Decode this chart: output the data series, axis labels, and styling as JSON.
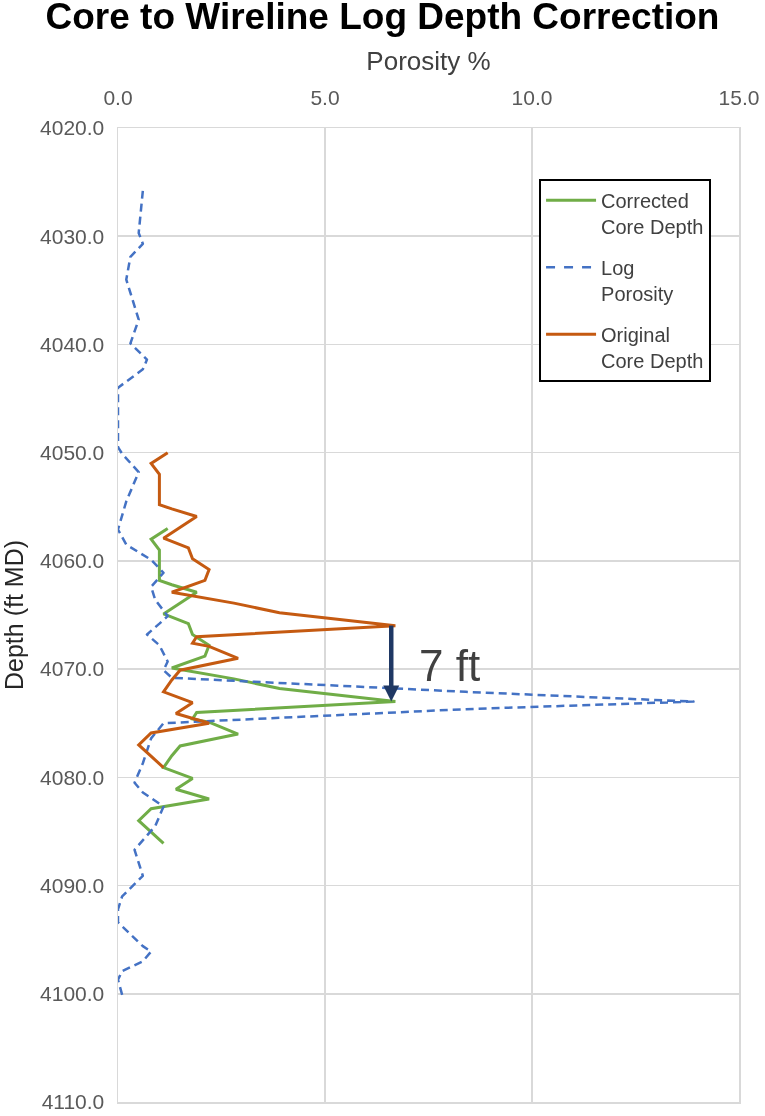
{
  "chart_data": {
    "type": "line",
    "title": "Core to Wireline Log Depth Correction",
    "xlabel": "Porosity %",
    "ylabel": "Depth (ft MD)",
    "xlim": [
      0,
      15
    ],
    "xticks": [
      {
        "value": 0,
        "label": "0.0"
      },
      {
        "value": 5,
        "label": "5.0"
      },
      {
        "value": 10,
        "label": "10.0"
      },
      {
        "value": 15,
        "label": "15.0"
      }
    ],
    "ylim": [
      4110,
      4020
    ],
    "yticks": [
      {
        "value": 4020,
        "label": "4020.0"
      },
      {
        "value": 4030,
        "label": "4030.0"
      },
      {
        "value": 4040,
        "label": "4040.0"
      },
      {
        "value": 4050,
        "label": "4050.0"
      },
      {
        "value": 4060,
        "label": "4060.0"
      },
      {
        "value": 4070,
        "label": "4070.0"
      },
      {
        "value": 4080,
        "label": "4080.0"
      },
      {
        "value": 4090,
        "label": "4090.0"
      },
      {
        "value": 4100,
        "label": "4100.0"
      },
      {
        "value": 4110,
        "label": "4110.0"
      }
    ],
    "grid": true,
    "legend": "top right",
    "line_style": "solid",
    "series": [
      {
        "name": "Corrected Core Depth",
        "color": "#70ad47",
        "x": [
          1.2,
          0.8,
          1.0,
          1.0,
          1.3,
          1.9,
          1.1,
          1.7,
          1.8,
          2.2,
          2.1,
          1.3,
          2.8,
          3.9,
          6.7,
          1.9,
          1.8,
          2.2,
          2.9,
          1.5,
          1.3,
          1.1,
          1.8,
          1.4,
          2.2,
          0.8,
          0.5,
          1.1
        ],
        "values": [
          4057.0,
          4058.0,
          4059.0,
          4061.8,
          4062.2,
          4062.9,
          4064.9,
          4065.8,
          4066.8,
          4067.8,
          4068.8,
          4069.9,
          4070.9,
          4071.8,
          4073.0,
          4074.0,
          4074.6,
          4074.9,
          4076.0,
          4077.1,
          4078.0,
          4079.1,
          4080.1,
          4081.1,
          4082.0,
          4082.9,
          4084.0,
          4086.1
        ]
      },
      {
        "name": "Log Porosity",
        "color": "#4472c4",
        "line_style": "dashed",
        "x": [
          0.6,
          0.5,
          0.6,
          0.3,
          0.2,
          0.5,
          0.3,
          0.7,
          0.6,
          0.0,
          0.0,
          0.0,
          0.1,
          0.5,
          0.2,
          0.0,
          0.2,
          0.8,
          1.1,
          0.8,
          0.9,
          1.2,
          1.0,
          0.7,
          1.0,
          1.2,
          1.1,
          1.3,
          8.4,
          13.9,
          8.4,
          1.1,
          0.8,
          0.6,
          0.4,
          0.6,
          1.1,
          0.9,
          0.4,
          0.6,
          0.1,
          0.0,
          0.0,
          0.6,
          0.8,
          0.6,
          0.1,
          0.0,
          0.1
        ],
        "values": [
          4025.8,
          4029.7,
          4030.7,
          4031.9,
          4034.0,
          4037.7,
          4039.9,
          4041.4,
          4042.3,
          4044.0,
          4045.3,
          4049.5,
          4050.1,
          4051.8,
          4054.5,
          4057.1,
          4058.5,
          4059.9,
          4061.1,
          4062.4,
          4063.6,
          4065.1,
          4065.8,
          4066.8,
          4067.8,
          4069.3,
          4070.1,
          4070.8,
          4072.1,
          4073.0,
          4073.7,
          4075.0,
          4076.4,
          4078.7,
          4080.5,
          4081.4,
          4082.7,
          4084.5,
          4086.7,
          4089.1,
          4091.0,
          4092.2,
          4093.4,
          4095.6,
          4096.1,
          4097.0,
          4097.9,
          4098.7,
          4100.1
        ]
      },
      {
        "name": "Original Core Depth",
        "color": "#c55a11",
        "x": [
          1.2,
          0.8,
          1.0,
          1.0,
          1.3,
          1.9,
          1.1,
          1.7,
          1.8,
          2.2,
          2.1,
          1.3,
          2.8,
          3.9,
          6.7,
          1.9,
          1.8,
          2.2,
          2.9,
          1.5,
          1.3,
          1.1,
          1.8,
          1.4,
          2.2,
          0.8,
          0.5,
          1.1
        ],
        "values": [
          4050.0,
          4051.0,
          4052.0,
          4054.8,
          4055.2,
          4055.9,
          4057.9,
          4058.8,
          4059.8,
          4060.8,
          4061.8,
          4062.9,
          4063.9,
          4064.8,
          4066.0,
          4067.0,
          4067.6,
          4067.9,
          4069.0,
          4070.1,
          4071.0,
          4072.1,
          4073.1,
          4074.1,
          4075.0,
          4075.9,
          4077.0,
          4079.1
        ]
      }
    ],
    "annotations": [
      {
        "text": "7 ft",
        "x": 6.6,
        "y": 4073
      }
    ]
  }
}
